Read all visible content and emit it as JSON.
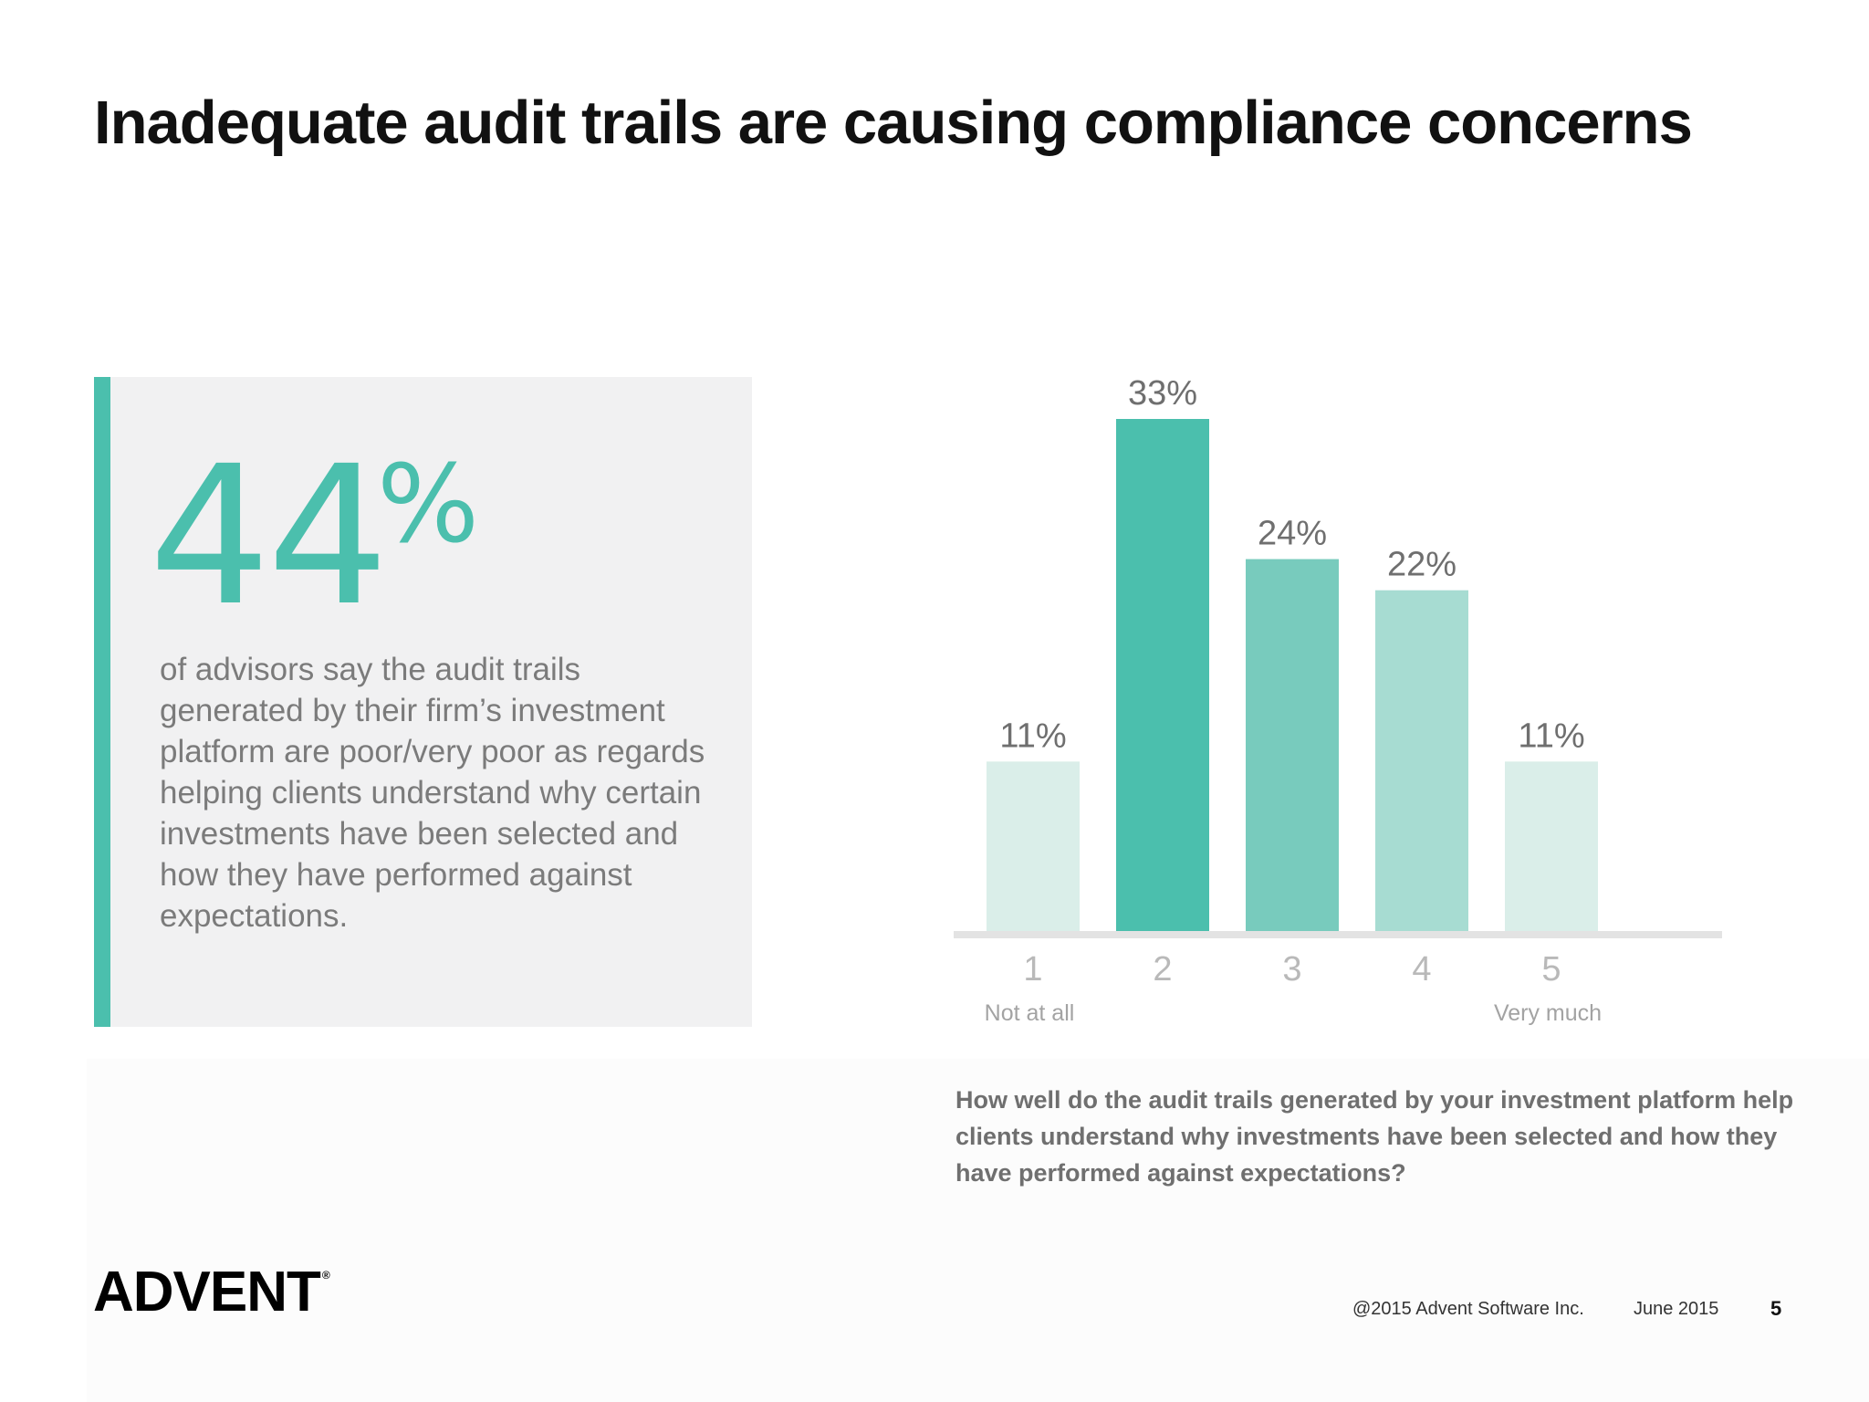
{
  "slide": {
    "title": "Inadequate audit trails are causing compliance concerns",
    "accent_color": "#4bbfad"
  },
  "stat": {
    "number": "44",
    "percent": "%",
    "description": "of advisors say the audit trails generated by their firm’s investment platform are poor/very poor as regards helping clients understand why certain investments have been selected and how they have performed against expectations."
  },
  "chart_data": {
    "type": "bar",
    "categories": [
      "1",
      "2",
      "3",
      "4",
      "5"
    ],
    "values": [
      11,
      33,
      24,
      22,
      11
    ],
    "value_labels": [
      "11%",
      "33%",
      "24%",
      "22%",
      "11%"
    ],
    "category_sublabels": [
      "Not at all",
      "",
      "",
      "",
      "Very much"
    ],
    "colors": [
      "#daeee9",
      "#4bbfad",
      "#78cbbd",
      "#a7dcd2",
      "#daeee9"
    ],
    "ylim": [
      0,
      33
    ],
    "grid": false,
    "legend": "none",
    "title": "",
    "xlabel": "",
    "ylabel": ""
  },
  "question": "How well do the audit trails generated by your investment platform help clients understand why investments have been selected and how they have performed against expectations?",
  "footer": {
    "logo_text": "ADVENT",
    "logo_mark": "®",
    "copyright": "@2015 Advent Software Inc.",
    "date": "June 2015",
    "page_number": "5"
  }
}
